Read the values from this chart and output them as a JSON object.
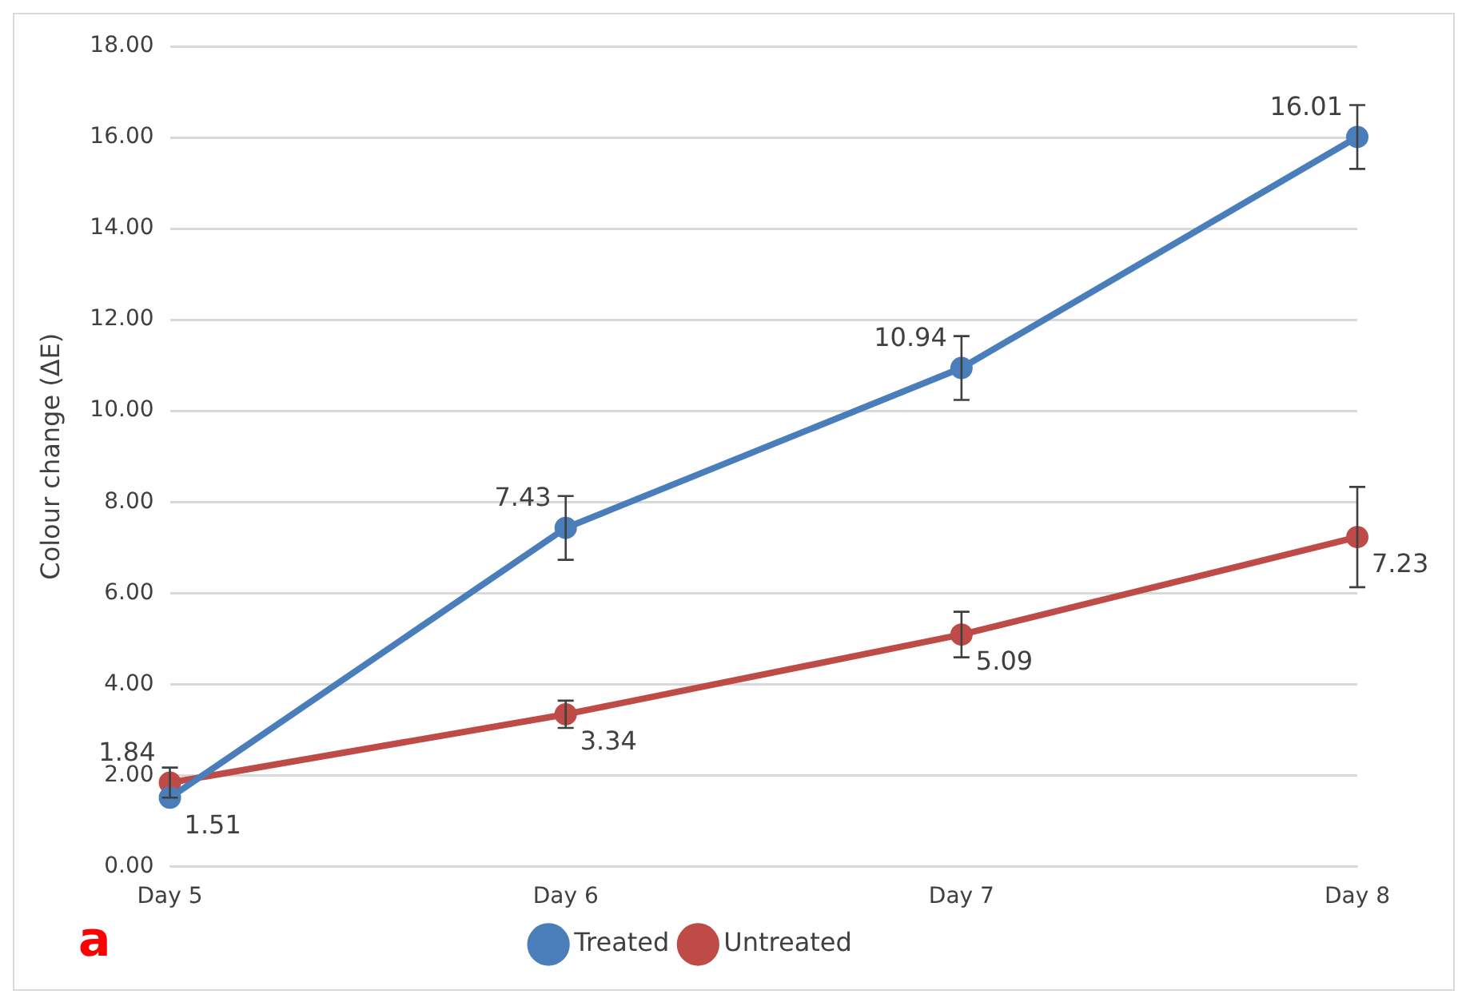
{
  "chart_data": {
    "type": "line",
    "ylabel": "Colour change (ΔE)",
    "categories": [
      "Day 5",
      "Day 6",
      "Day 7",
      "Day 8"
    ],
    "series": [
      {
        "name": "Treated",
        "color": "#4a7ebb",
        "values": [
          1.51,
          7.43,
          10.94,
          16.01
        ],
        "errors": [
          null,
          0.7,
          0.7,
          0.7
        ]
      },
      {
        "name": "Untreated",
        "color": "#be4b48",
        "values": [
          1.84,
          3.34,
          5.09,
          7.23
        ],
        "errors": [
          0.33,
          0.3,
          0.5,
          1.1
        ]
      }
    ],
    "ylim": [
      0,
      18
    ],
    "yticks": [
      {
        "value": 0,
        "label": "0.00"
      },
      {
        "value": 2,
        "label": "2.00"
      },
      {
        "value": 4,
        "label": "4.00"
      },
      {
        "value": 6,
        "label": "6.00"
      },
      {
        "value": 8,
        "label": "8.00"
      },
      {
        "value": 10,
        "label": "10.00"
      },
      {
        "value": 12,
        "label": "12.00"
      },
      {
        "value": 14,
        "label": "14.00"
      },
      {
        "value": 16,
        "label": "16.00"
      },
      {
        "value": 18,
        "label": "18.00"
      }
    ],
    "grid": "y",
    "legend": "bottom",
    "marker": "circle",
    "line_style": "solid",
    "data_labels": true,
    "annotations": [
      "a"
    ]
  }
}
